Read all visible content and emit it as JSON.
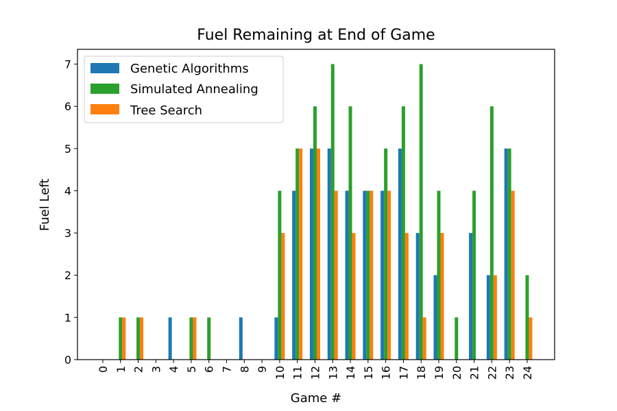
{
  "chart_data": {
    "type": "bar",
    "title": "Fuel Remaining at End of Game",
    "xlabel": "Game #",
    "ylabel": "Fuel Left",
    "categories": [
      "0",
      "1",
      "2",
      "3",
      "4",
      "5",
      "6",
      "7",
      "8",
      "9",
      "10",
      "11",
      "12",
      "13",
      "14",
      "15",
      "16",
      "17",
      "18",
      "19",
      "20",
      "21",
      "22",
      "23",
      "24"
    ],
    "ylim": [
      0,
      7.35
    ],
    "yticks": [
      "0",
      "1",
      "2",
      "3",
      "4",
      "5",
      "6",
      "7"
    ],
    "grid": false,
    "legend_position": "top-left",
    "series": [
      {
        "name": "Genetic Algorithms",
        "color": "#1f77b4",
        "values": [
          0,
          0,
          0,
          0,
          1,
          0,
          0,
          0,
          1,
          0,
          1,
          4,
          5,
          5,
          4,
          4,
          4,
          5,
          3,
          2,
          0,
          3,
          2,
          5,
          0
        ]
      },
      {
        "name": "Simulated Annealing",
        "color": "#2ca02c",
        "values": [
          0,
          1,
          1,
          0,
          0,
          1,
          1,
          0,
          0,
          0,
          4,
          5,
          6,
          7,
          6,
          4,
          5,
          6,
          7,
          4,
          1,
          4,
          6,
          5,
          2
        ]
      },
      {
        "name": "Tree Search",
        "color": "#ff7f0e",
        "values": [
          0,
          1,
          1,
          0,
          0,
          1,
          0,
          0,
          0,
          0,
          3,
          5,
          5,
          4,
          3,
          4,
          4,
          3,
          1,
          3,
          0,
          0,
          2,
          4,
          1
        ]
      }
    ]
  }
}
